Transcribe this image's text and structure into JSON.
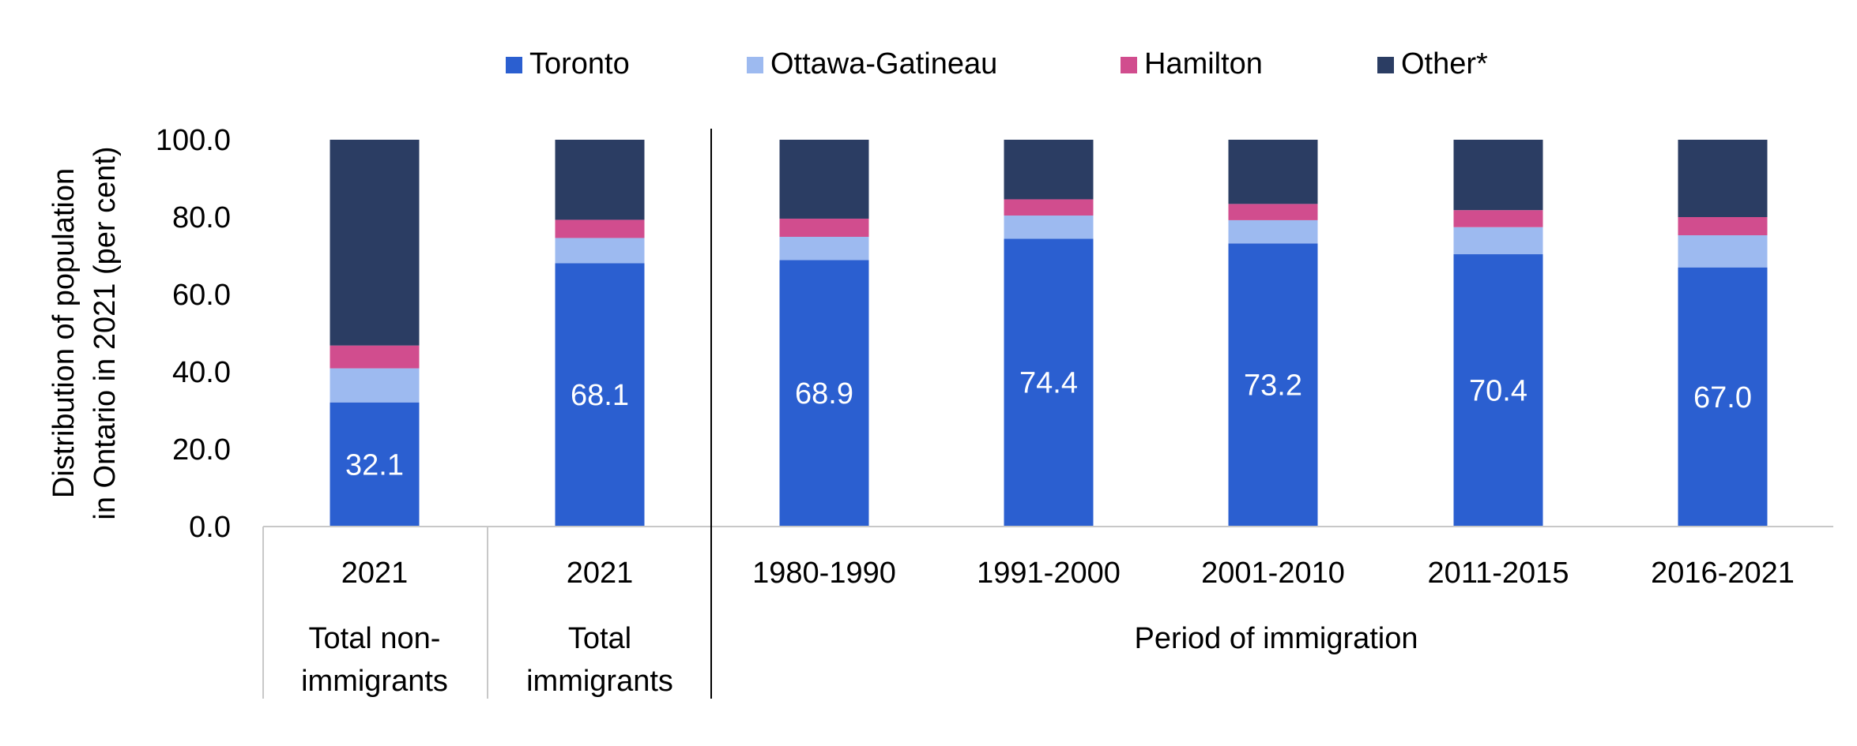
{
  "chart_data": {
    "type": "bar",
    "stacked": true,
    "ylabel_lines": [
      "Distribution of population",
      "in Ontario in 2021 (per cent)"
    ],
    "ylim": [
      0,
      100
    ],
    "yticks": [
      "0.0",
      "20.0",
      "40.0",
      "60.0",
      "80.0",
      "100.0"
    ],
    "grid": false,
    "legend_position": "top",
    "categories": [
      {
        "label": "2021",
        "group_lines": [
          "Total non-",
          "immigrants"
        ]
      },
      {
        "label": "2021",
        "group_lines": [
          "Total",
          "immigrants"
        ]
      },
      {
        "label": "1980-1990"
      },
      {
        "label": "1991-2000"
      },
      {
        "label": "2001-2010"
      },
      {
        "label": "2011-2015"
      },
      {
        "label": "2016-2021"
      }
    ],
    "group_label": "Period of immigration",
    "series": [
      {
        "name": "Toronto",
        "color": "#2b5fd0",
        "values": [
          32.1,
          68.1,
          68.9,
          74.4,
          73.2,
          70.4,
          67.0
        ],
        "data_labels": [
          "32.1",
          "68.1",
          "68.9",
          "74.4",
          "73.2",
          "70.4",
          "67.0"
        ]
      },
      {
        "name": "Ottawa-Gatineau",
        "color": "#9dbaf0",
        "values": [
          8.8,
          6.5,
          6.0,
          6.0,
          6.0,
          7.0,
          8.3
        ]
      },
      {
        "name": "Hamilton",
        "color": "#d14d8e",
        "values": [
          5.9,
          4.7,
          4.7,
          4.2,
          4.2,
          4.4,
          4.7
        ]
      },
      {
        "name": "Other*",
        "color": "#2b3d63",
        "values": [
          53.2,
          20.7,
          20.4,
          15.4,
          16.6,
          18.2,
          20.0
        ]
      }
    ]
  }
}
